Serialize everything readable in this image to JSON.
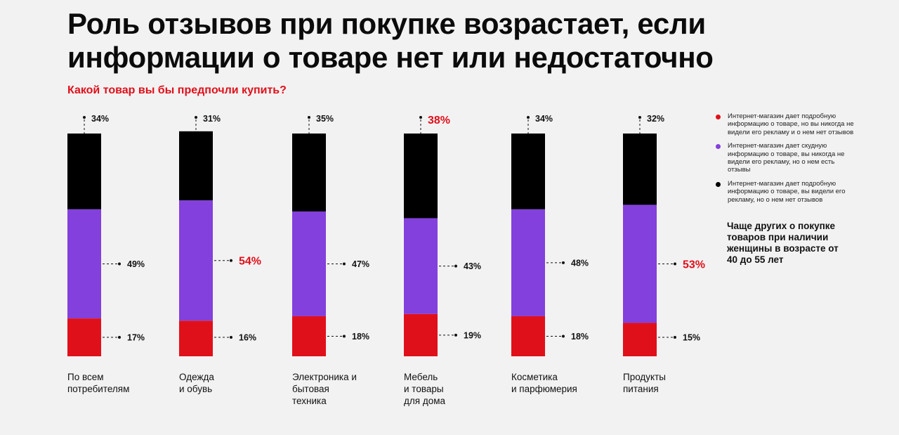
{
  "title": "Роль отзывов при покупке возрастает, если информации о товаре нет или недостаточно",
  "subtitle": "Какой товар вы бы предпочли купить?",
  "colors": {
    "red": "#e0101a",
    "purple": "#8340dc",
    "black": "#000000",
    "accent_text": "#e0101a"
  },
  "chart_data": {
    "type": "bar",
    "stacked": true,
    "categories": [
      "По всем потребителям",
      "Одежда и обувь",
      "Электроника и бытовая техника",
      "Мебель и товары для дома",
      "Косметика и парфюмерия",
      "Продукты питания"
    ],
    "category_lines": [
      [
        "По всем",
        "потребителям"
      ],
      [
        "Одежда",
        "и обувь"
      ],
      [
        "Электроника и",
        "бытовая",
        "техника"
      ],
      [
        "Мебель",
        "и товары",
        "для дома"
      ],
      [
        "Косметика",
        "и парфюмерия"
      ],
      [
        "Продукты",
        "питания"
      ]
    ],
    "series": [
      {
        "name": "Интернет-магазин дает подробную информацию о товаре, но вы никогда не видели его рекламу и о нем нет отзывов",
        "color": "#e0101a",
        "values": [
          17,
          16,
          18,
          19,
          18,
          15
        ],
        "labels": [
          "17%",
          "16%",
          "18%",
          "19%",
          "18%",
          "15%"
        ]
      },
      {
        "name": "Интернет-магазин дает скудную информацию о товаре, вы никогда не видели его рекламу, но о нем есть отзывы",
        "color": "#8340dc",
        "values": [
          49,
          54,
          47,
          43,
          48,
          53
        ],
        "labels": [
          "49%",
          "54%",
          "47%",
          "43%",
          "48%",
          "53%"
        ]
      },
      {
        "name": "Интернет-магазин дает подробную информацию о товаре, вы видели его рекламу, но о нем нет отзывов",
        "color": "#000000",
        "values": [
          34,
          31,
          35,
          38,
          34,
          32
        ],
        "labels": [
          "34%",
          "31%",
          "35%",
          "38%",
          "34%",
          "32%"
        ]
      }
    ],
    "highlights": [
      {
        "series": 2,
        "category": 3
      },
      {
        "series": 1,
        "category": 1
      },
      {
        "series": 1,
        "category": 5
      }
    ],
    "ylim": [
      0,
      100
    ]
  },
  "legend": {
    "items": [
      {
        "color": "#e0101a",
        "text": "Интернет-магазин дает подробную информацию о товаре, но вы никогда не видели его рекламу и о нем нет отзывов"
      },
      {
        "color": "#8340dc",
        "text": "Интернет-магазин дает скудную информацию о товаре, вы никогда не видели его рекламу, но о нем есть отзывы"
      },
      {
        "color": "#000000",
        "text": "Интернет-магазин дает подробную информацию о товаре, вы видели его рекламу, но о нем нет отзывов"
      }
    ]
  },
  "note": {
    "value": "53%",
    "text": "Чаще других о покупке товаров при наличии женщины в возрасте от 40 до 55 лет"
  }
}
